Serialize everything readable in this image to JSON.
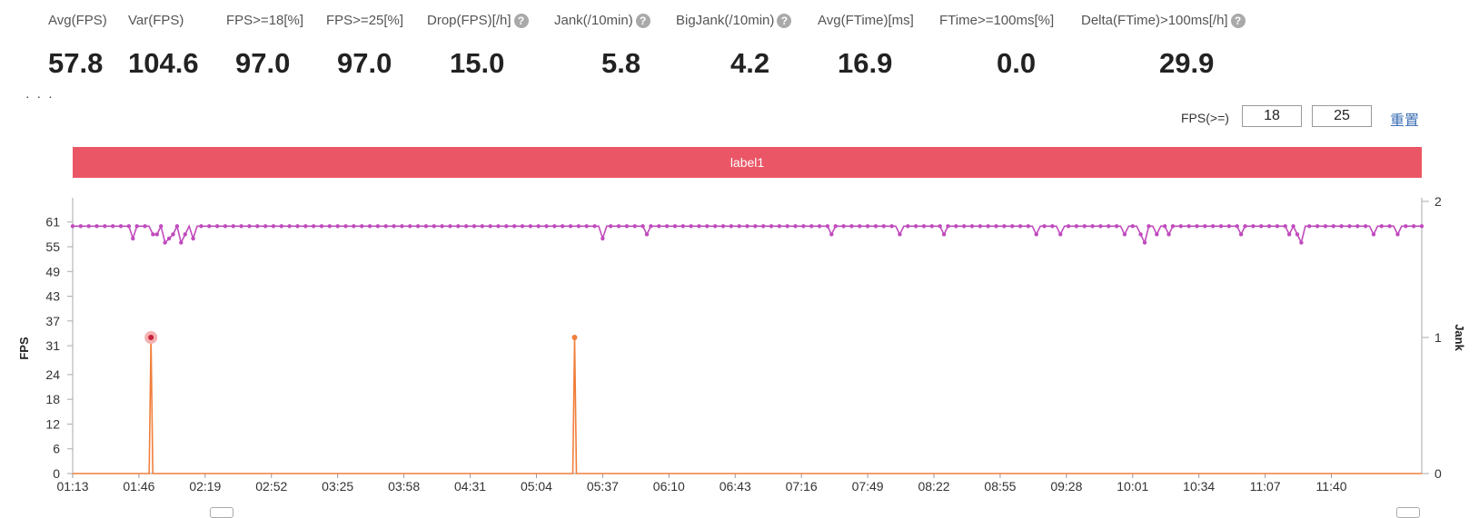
{
  "metrics": [
    {
      "label": "Avg(FPS)",
      "value": "57.8",
      "help": false
    },
    {
      "label": "Var(FPS)",
      "value": "104.6",
      "help": false
    },
    {
      "label": "FPS>=18[%]",
      "value": "97.0",
      "help": false
    },
    {
      "label": "FPS>=25[%]",
      "value": "97.0",
      "help": false
    },
    {
      "label": "Drop(FPS)[/h]",
      "value": "15.0",
      "help": true
    },
    {
      "label": "Jank(/10min)",
      "value": "5.8",
      "help": true
    },
    {
      "label": "BigJank(/10min)",
      "value": "4.2",
      "help": true
    },
    {
      "label": "Avg(FTime)[ms]",
      "value": "16.9",
      "help": false
    },
    {
      "label": "FTime>=100ms[%]",
      "value": "0.0",
      "help": false
    },
    {
      "label": "Delta(FTime)>100ms[/h]",
      "value": "29.9",
      "help": true
    }
  ],
  "threshold": {
    "label": "FPS(>=)",
    "low": "18",
    "high": "25",
    "reset_label": "重置"
  },
  "band_label": "label1",
  "colors": {
    "fps_line": "#c04bbd",
    "jank_line": "#f07f3c",
    "band": "#ea5665",
    "highlight": "#f4b1b1"
  },
  "chart_data": {
    "type": "line",
    "xlabel": "",
    "ylabel": "FPS",
    "y2label": "Jank",
    "x_ticks": [
      "01:13",
      "01:46",
      "02:19",
      "02:52",
      "03:25",
      "03:58",
      "04:31",
      "05:04",
      "05:37",
      "06:10",
      "06:43",
      "07:16",
      "07:49",
      "08:22",
      "08:55",
      "09:28",
      "10:01",
      "10:34",
      "11:07",
      "11:40"
    ],
    "y_ticks": [
      "0",
      "6",
      "12",
      "18",
      "24",
      "31",
      "37",
      "43",
      "49",
      "55",
      "61"
    ],
    "y2_ticks": [
      "0",
      "1",
      "2"
    ],
    "ylim": [
      0,
      66
    ],
    "y2lim": [
      0,
      2
    ],
    "x_range_seconds": [
      73,
      745
    ],
    "series": [
      {
        "axis": "left",
        "baseline": 60,
        "dips": [
          {
            "t": 103,
            "v": 57
          },
          {
            "t": 114,
            "v": 58
          },
          {
            "t": 120,
            "v": 57
          },
          {
            "t": 113,
            "v": 58
          },
          {
            "t": 112,
            "v": 53
          },
          {
            "t": 115,
            "v": 58
          },
          {
            "t": 118,
            "v": 56
          },
          {
            "t": 122,
            "v": 58
          },
          {
            "t": 126,
            "v": 56
          },
          {
            "t": 129,
            "v": 58
          },
          {
            "t": 133,
            "v": 57
          },
          {
            "t": 337,
            "v": 57
          },
          {
            "t": 358,
            "v": 58
          },
          {
            "t": 451,
            "v": 58
          },
          {
            "t": 485,
            "v": 58
          },
          {
            "t": 506,
            "v": 58
          },
          {
            "t": 552,
            "v": 58
          },
          {
            "t": 565,
            "v": 58
          },
          {
            "t": 596,
            "v": 58
          },
          {
            "t": 604,
            "v": 58
          },
          {
            "t": 606,
            "v": 56
          },
          {
            "t": 612,
            "v": 58
          },
          {
            "t": 618,
            "v": 58
          },
          {
            "t": 655,
            "v": 58
          },
          {
            "t": 679,
            "v": 58
          },
          {
            "t": 682,
            "v": 58
          },
          {
            "t": 684,
            "v": 56
          },
          {
            "t": 720,
            "v": 58
          },
          {
            "t": 733,
            "v": 58
          }
        ]
      },
      {
        "axis": "right",
        "baseline": 0,
        "spikes": [
          {
            "t": 112,
            "v": 1
          },
          {
            "t": 323,
            "v": 1
          }
        ]
      }
    ]
  }
}
